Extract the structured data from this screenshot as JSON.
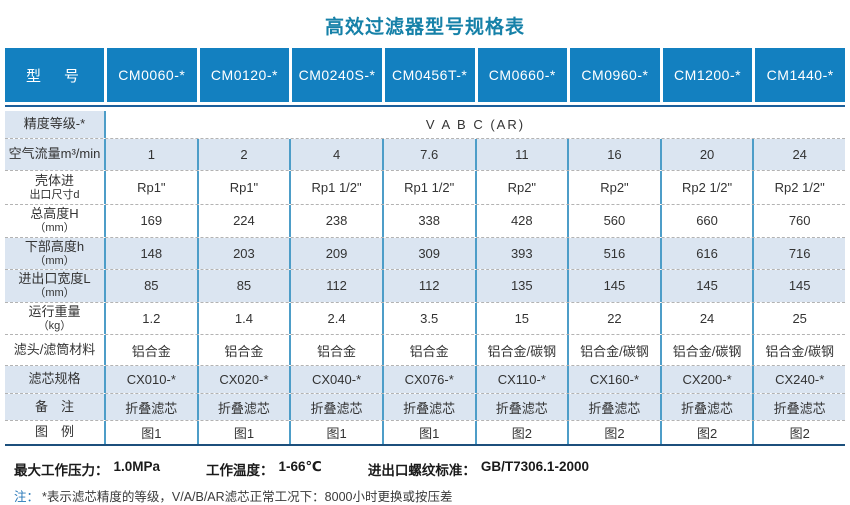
{
  "title": "高效过滤器型号规格表",
  "colors": {
    "header_bg": "#1380c0",
    "shaded_row": "#dbe5f1",
    "column_divider": "#4d9dc8",
    "header_underline": "#1d5f9b",
    "table_bottom_line": "#1c4f7c",
    "title_color": "#1681a8",
    "note_label_color": "#2878b8"
  },
  "table": {
    "header": [
      "型　号",
      "CM0060-*",
      "CM0120-*",
      "CM0240S-*",
      "CM0456T-*",
      "CM0660-*",
      "CM0960-*",
      "CM1200-*",
      "CM1440-*"
    ],
    "rows": [
      {
        "label_lines": [
          "精度等级-*"
        ],
        "merged": true,
        "span_value": "V A B C (AR)",
        "label_shaded": true,
        "cells_shaded": false,
        "cells": []
      },
      {
        "label_lines": [
          "空气流量m³/min"
        ],
        "label_shaded": true,
        "cells_shaded": true,
        "cells": [
          "1",
          "2",
          "4",
          "7.6",
          "11",
          "16",
          "20",
          "24"
        ]
      },
      {
        "label_lines": [
          "壳体进",
          "出口尺寸d"
        ],
        "label_shaded": false,
        "cells_shaded": false,
        "cells": [
          "Rp1\"",
          "Rp1\"",
          "Rp1 1/2\"",
          "Rp1 1/2\"",
          "Rp2\"",
          "Rp2\"",
          "Rp2 1/2\"",
          "Rp2 1/2\""
        ]
      },
      {
        "label_lines": [
          "总高度H",
          "（mm）"
        ],
        "label_shaded": false,
        "cells_shaded": false,
        "cells": [
          "169",
          "224",
          "238",
          "338",
          "428",
          "560",
          "660",
          "760"
        ]
      },
      {
        "label_lines": [
          "下部高度h",
          "（mm）"
        ],
        "label_shaded": true,
        "cells_shaded": true,
        "cells": [
          "148",
          "203",
          "209",
          "309",
          "393",
          "516",
          "616",
          "716"
        ]
      },
      {
        "label_lines": [
          "进出口宽度L",
          "（mm）"
        ],
        "label_shaded": true,
        "cells_shaded": true,
        "cells": [
          "85",
          "85",
          "112",
          "112",
          "135",
          "145",
          "145",
          "145"
        ]
      },
      {
        "label_lines": [
          "运行重量",
          "（kg）"
        ],
        "label_shaded": false,
        "cells_shaded": false,
        "cells": [
          "1.2",
          "1.4",
          "2.4",
          "3.5",
          "15",
          "22",
          "24",
          "25"
        ]
      },
      {
        "label_lines": [
          "滤头/滤筒材料"
        ],
        "label_shaded": false,
        "cells_shaded": false,
        "cells": [
          "铝合金",
          "铝合金",
          "铝合金",
          "铝合金",
          "铝合金/碳钢",
          "铝合金/碳钢",
          "铝合金/碳钢",
          "铝合金/碳钢"
        ]
      },
      {
        "label_lines": [
          "滤芯规格"
        ],
        "label_shaded": true,
        "cells_shaded": true,
        "cells": [
          "CX010-*",
          "CX020-*",
          "CX040-*",
          "CX076-*",
          "CX110-*",
          "CX160-*",
          "CX200-*",
          "CX240-*"
        ]
      },
      {
        "label_lines": [
          "备　注"
        ],
        "label_shaded": true,
        "cells_shaded": true,
        "cells": [
          "折叠滤芯",
          "折叠滤芯",
          "折叠滤芯",
          "折叠滤芯",
          "折叠滤芯",
          "折叠滤芯",
          "折叠滤芯",
          "折叠滤芯"
        ]
      },
      {
        "label_lines": [
          "图　例"
        ],
        "label_shaded": false,
        "cells_shaded": false,
        "cells": [
          "图1",
          "图1",
          "图1",
          "图1",
          "图2",
          "图2",
          "图2",
          "图2"
        ]
      }
    ]
  },
  "footer": {
    "specs": [
      {
        "label": "最大工作压力：",
        "value": "1.0MPa"
      },
      {
        "label": "工作温度：",
        "value": "1-66℃"
      },
      {
        "label": "进出口螺纹标准：",
        "value": "GB/T7306.1-2000"
      }
    ],
    "note_label": "注：",
    "note_text": "*表示滤芯精度的等级，V/A/B/AR滤芯正常工况下：8000小时更换或按压差"
  }
}
